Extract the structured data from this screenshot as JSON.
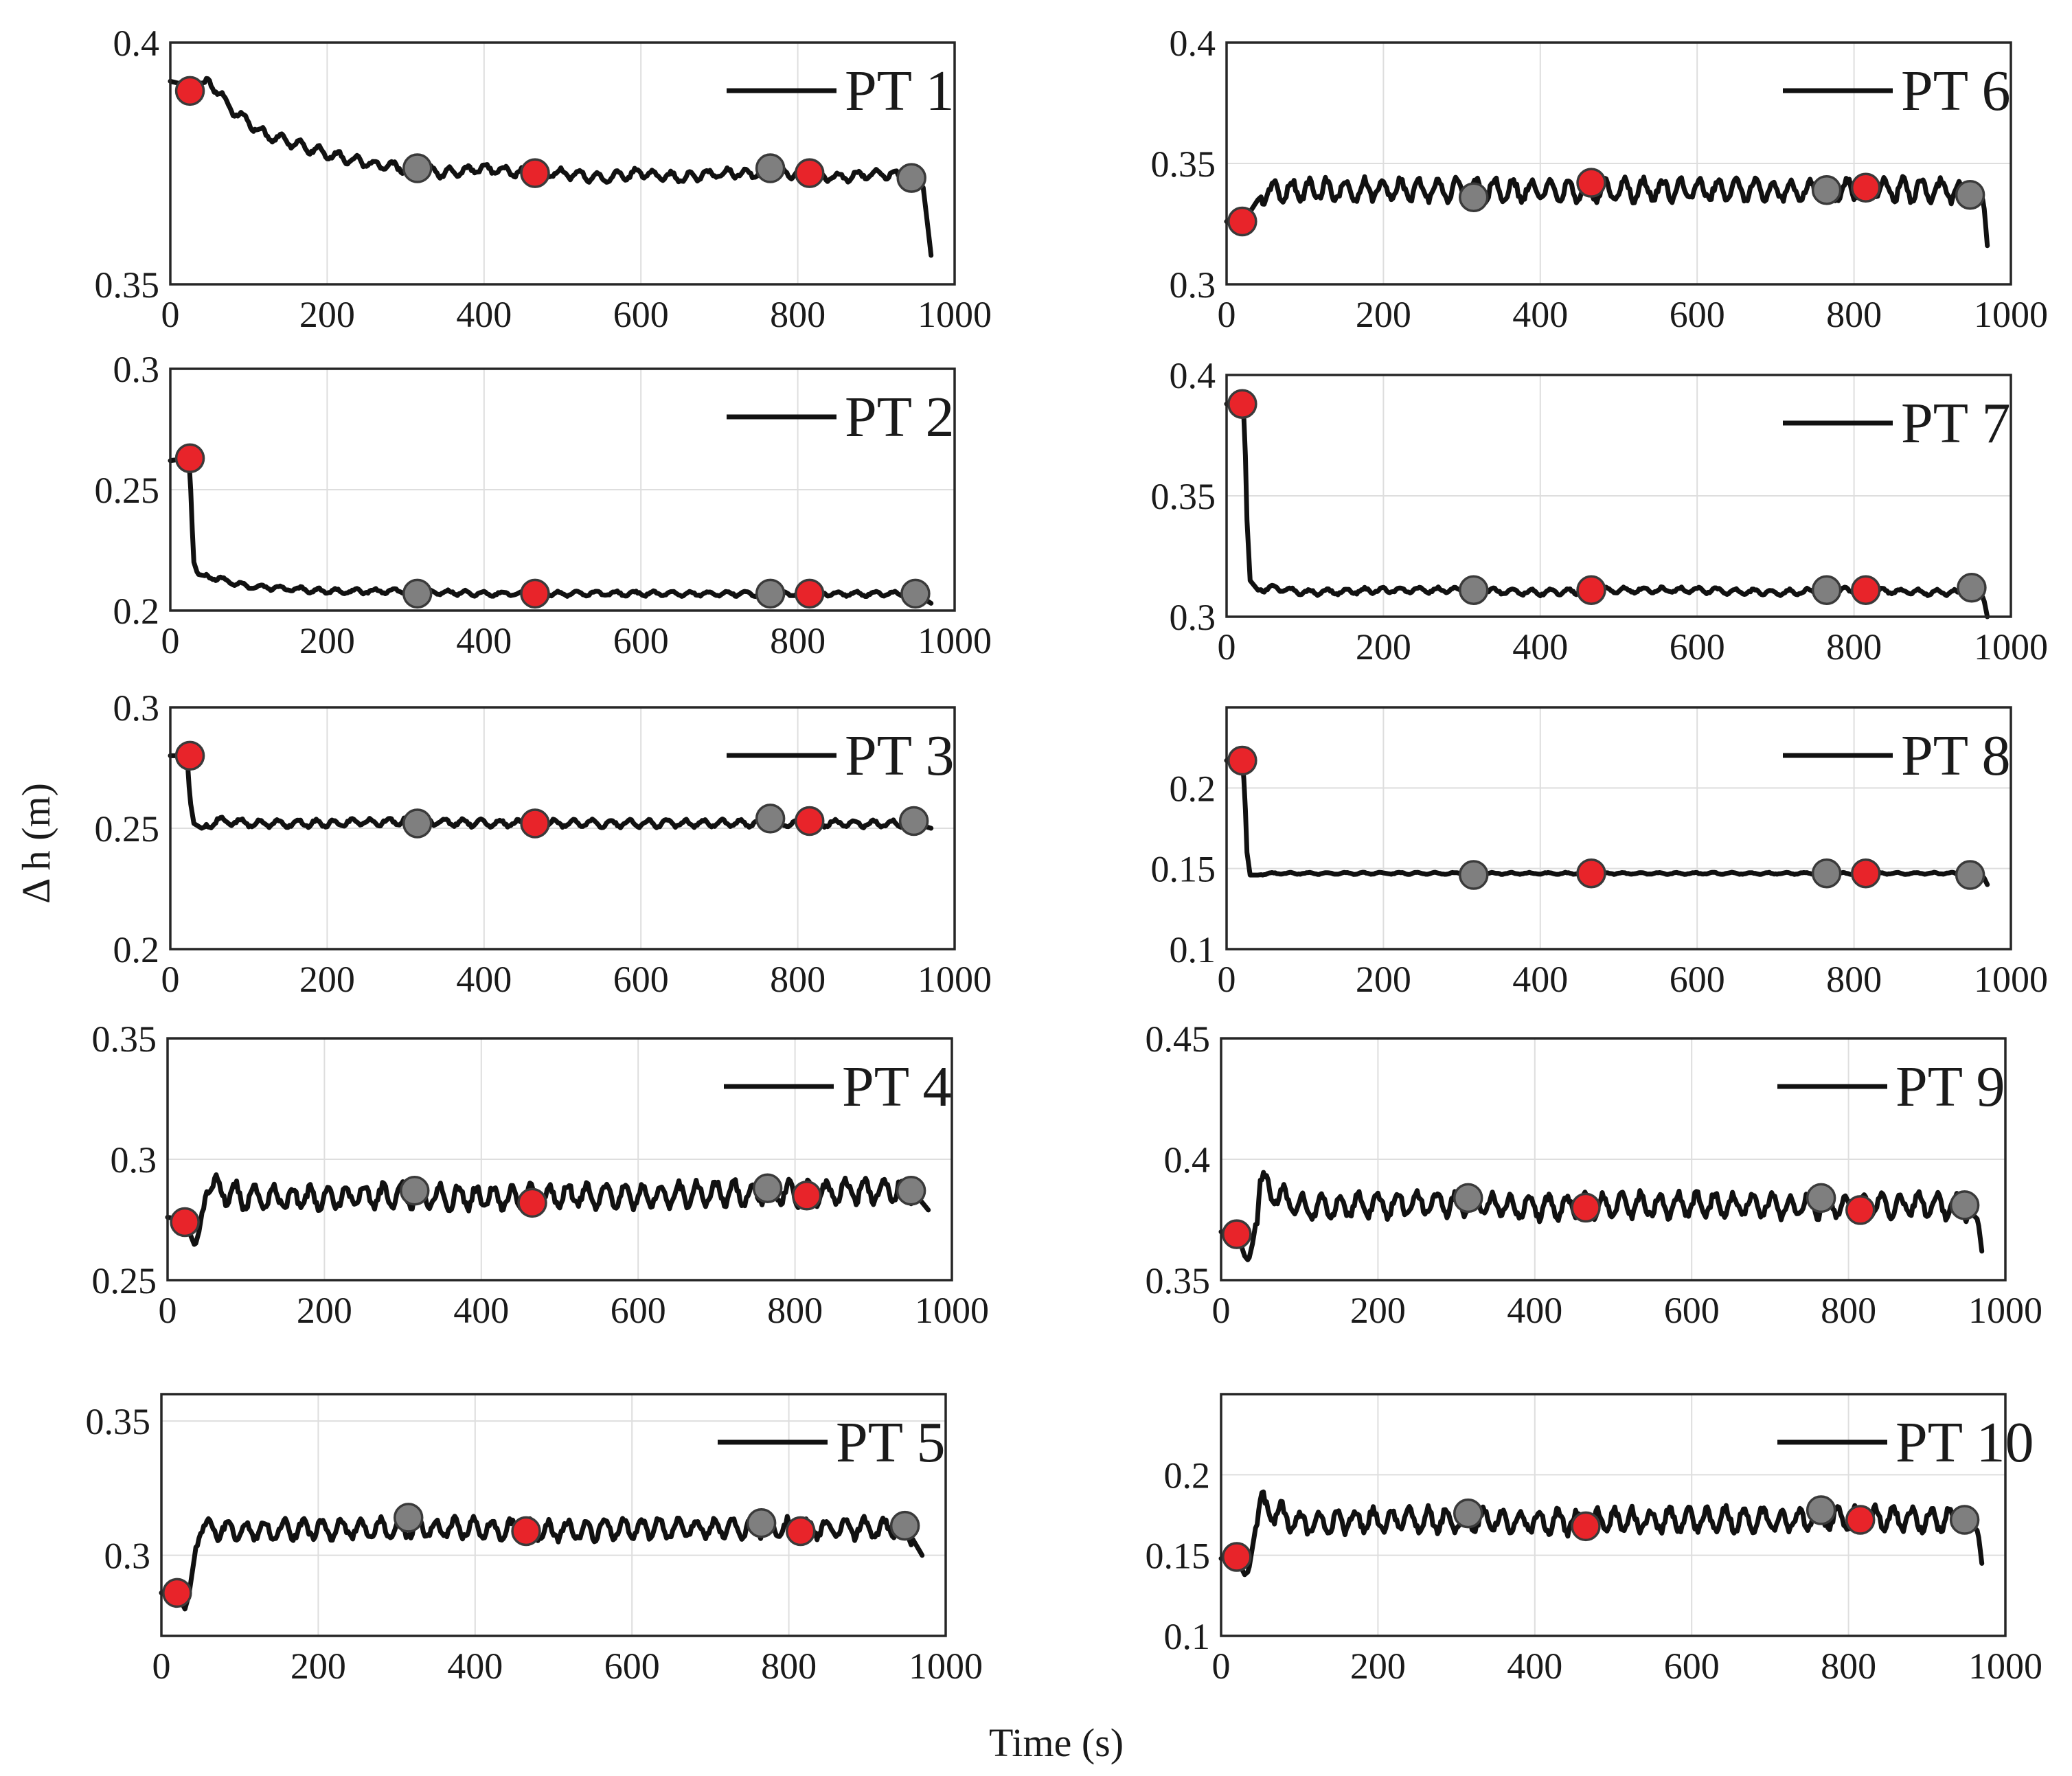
{
  "figure": {
    "ylabel": "Δ h (m)",
    "xlabel": "Time (s)"
  },
  "colors": {
    "line": "#111111",
    "marker_red": "#e8242a",
    "marker_gray": "#7f7f7f",
    "grid": "#dedede"
  },
  "chart_data": [
    {
      "type": "line",
      "panel": "PT 1",
      "legend": "PT 1",
      "legend_position": "top-right",
      "xlim": [
        0,
        1000
      ],
      "ylim": [
        0.35,
        0.4
      ],
      "xticks": [
        "0",
        "200",
        "400",
        "600",
        "800",
        "1000"
      ],
      "yticks": [
        "0.35",
        "0.4"
      ],
      "series": [
        {
          "name": "PT 1",
          "x": [
            0,
            25,
            50,
            80,
            120,
            160,
            200,
            250,
            300,
            350,
            400,
            450,
            500,
            550,
            600,
            650,
            700,
            750,
            800,
            850,
            900,
            950,
            960,
            970
          ],
          "y": [
            0.392,
            0.391,
            0.392,
            0.386,
            0.381,
            0.379,
            0.377,
            0.375,
            0.374,
            0.373,
            0.374,
            0.373,
            0.373,
            0.372,
            0.373,
            0.372,
            0.373,
            0.373,
            0.373,
            0.372,
            0.373,
            0.372,
            0.37,
            0.356
          ],
          "noise": 0.0012
        }
      ],
      "red_markers": [
        [
          25,
          0.39
        ],
        [
          465,
          0.373
        ],
        [
          815,
          0.373
        ]
      ],
      "gray_markers": [
        [
          315,
          0.374
        ],
        [
          765,
          0.374
        ],
        [
          945,
          0.372
        ]
      ]
    },
    {
      "type": "line",
      "panel": "PT 2",
      "legend": "PT 2",
      "legend_position": "top-right",
      "xlim": [
        0,
        1000
      ],
      "ylim": [
        0.2,
        0.3
      ],
      "xticks": [
        "0",
        "200",
        "400",
        "600",
        "800",
        "1000"
      ],
      "yticks": [
        "0.2",
        "0.25",
        "0.3"
      ],
      "series": [
        {
          "name": "PT 2",
          "x": [
            0,
            22,
            25,
            27,
            30,
            35,
            50,
            100,
            150,
            200,
            300,
            400,
            500,
            600,
            700,
            800,
            900,
            950,
            970
          ],
          "y": [
            0.262,
            0.263,
            0.26,
            0.24,
            0.22,
            0.215,
            0.214,
            0.21,
            0.209,
            0.208,
            0.208,
            0.207,
            0.207,
            0.207,
            0.207,
            0.207,
            0.207,
            0.207,
            0.203
          ],
          "noise": 0.0012
        }
      ],
      "red_markers": [
        [
          25,
          0.263
        ],
        [
          465,
          0.207
        ],
        [
          815,
          0.207
        ]
      ],
      "gray_markers": [
        [
          315,
          0.207
        ],
        [
          765,
          0.207
        ],
        [
          950,
          0.207
        ]
      ]
    },
    {
      "type": "line",
      "panel": "PT 3",
      "legend": "PT 3",
      "legend_position": "top-right",
      "xlim": [
        0,
        1000
      ],
      "ylim": [
        0.2,
        0.3
      ],
      "xticks": [
        "0",
        "200",
        "400",
        "600",
        "800",
        "1000"
      ],
      "yticks": [
        "0.2",
        "0.25",
        "0.3"
      ],
      "series": [
        {
          "name": "PT 3",
          "x": [
            0,
            20,
            22,
            25,
            30,
            40,
            60,
            100,
            200,
            300,
            400,
            500,
            600,
            700,
            800,
            900,
            950,
            970
          ],
          "y": [
            0.28,
            0.28,
            0.277,
            0.262,
            0.252,
            0.25,
            0.253,
            0.252,
            0.252,
            0.253,
            0.252,
            0.252,
            0.252,
            0.252,
            0.252,
            0.252,
            0.252,
            0.25
          ],
          "noise": 0.0018
        }
      ],
      "red_markers": [
        [
          25,
          0.28
        ],
        [
          465,
          0.252
        ],
        [
          815,
          0.253
        ]
      ],
      "gray_markers": [
        [
          315,
          0.252
        ],
        [
          765,
          0.254
        ],
        [
          948,
          0.253
        ]
      ]
    },
    {
      "type": "line",
      "panel": "PT 4",
      "legend": "PT 4",
      "legend_position": "top-right",
      "xlim": [
        0,
        1000
      ],
      "ylim": [
        0.25,
        0.35
      ],
      "xticks": [
        "0",
        "200",
        "400",
        "600",
        "800",
        "1000"
      ],
      "yticks": [
        "0.25",
        "0.3",
        "0.35"
      ],
      "series": [
        {
          "name": "PT 4",
          "x": [
            0,
            20,
            30,
            35,
            40,
            45,
            50,
            60,
            100,
            200,
            300,
            400,
            500,
            600,
            700,
            800,
            900,
            950,
            970
          ],
          "y": [
            0.276,
            0.275,
            0.268,
            0.264,
            0.27,
            0.28,
            0.29,
            0.288,
            0.284,
            0.284,
            0.285,
            0.284,
            0.285,
            0.285,
            0.286,
            0.286,
            0.287,
            0.287,
            0.279
          ],
          "noise": 0.006
        }
      ],
      "red_markers": [
        [
          22,
          0.274
        ],
        [
          465,
          0.282
        ],
        [
          815,
          0.285
        ]
      ],
      "gray_markers": [
        [
          315,
          0.287
        ],
        [
          765,
          0.288
        ],
        [
          948,
          0.287
        ]
      ]
    },
    {
      "type": "line",
      "panel": "PT 5",
      "legend": "PT 5",
      "legend_position": "top-right",
      "xlim": [
        0,
        1000
      ],
      "ylim": [
        0.27,
        0.36
      ],
      "xticks": [
        "0",
        "200",
        "400",
        "600",
        "800",
        "1000"
      ],
      "yticks": [
        "0.3",
        "0.35"
      ],
      "series": [
        {
          "name": "PT 5",
          "x": [
            0,
            20,
            30,
            35,
            40,
            45,
            50,
            60,
            100,
            200,
            300,
            400,
            500,
            600,
            700,
            800,
            900,
            950,
            970
          ],
          "y": [
            0.286,
            0.286,
            0.28,
            0.285,
            0.295,
            0.305,
            0.312,
            0.31,
            0.309,
            0.31,
            0.31,
            0.31,
            0.309,
            0.31,
            0.31,
            0.31,
            0.31,
            0.31,
            0.3
          ],
          "noise": 0.0045
        }
      ],
      "red_markers": [
        [
          20,
          0.286
        ],
        [
          465,
          0.309
        ],
        [
          815,
          0.309
        ]
      ],
      "gray_markers": [
        [
          315,
          0.314
        ],
        [
          765,
          0.312
        ],
        [
          948,
          0.311
        ]
      ]
    },
    {
      "type": "line",
      "panel": "PT 6",
      "legend": "PT 6",
      "legend_position": "top-right",
      "xlim": [
        0,
        1000
      ],
      "ylim": [
        0.3,
        0.4
      ],
      "xticks": [
        "0",
        "200",
        "400",
        "600",
        "800",
        "1000"
      ],
      "yticks": [
        "0.3",
        "0.35",
        "0.4"
      ],
      "series": [
        {
          "name": "PT 6",
          "x": [
            0,
            20,
            30,
            40,
            50,
            100,
            200,
            300,
            400,
            500,
            600,
            700,
            800,
            900,
            950,
            965,
            970
          ],
          "y": [
            0.326,
            0.327,
            0.33,
            0.335,
            0.338,
            0.339,
            0.339,
            0.339,
            0.339,
            0.339,
            0.339,
            0.339,
            0.339,
            0.339,
            0.338,
            0.335,
            0.316
          ],
          "noise": 0.0055
        }
      ],
      "red_markers": [
        [
          20,
          0.326
        ],
        [
          465,
          0.342
        ],
        [
          815,
          0.34
        ]
      ],
      "gray_markers": [
        [
          315,
          0.336
        ],
        [
          765,
          0.339
        ],
        [
          948,
          0.337
        ]
      ]
    },
    {
      "type": "line",
      "panel": "PT 7",
      "legend": "PT 7",
      "legend_position": "top-right",
      "xlim": [
        0,
        1000
      ],
      "ylim": [
        0.3,
        0.4
      ],
      "xticks": [
        "0",
        "200",
        "400",
        "600",
        "800",
        "1000"
      ],
      "yticks": [
        "0.3",
        "0.35",
        "0.4"
      ],
      "series": [
        {
          "name": "PT 7",
          "x": [
            0,
            20,
            23,
            26,
            30,
            40,
            60,
            100,
            200,
            300,
            400,
            500,
            600,
            700,
            800,
            900,
            950,
            965,
            970
          ],
          "y": [
            0.388,
            0.388,
            0.38,
            0.34,
            0.315,
            0.311,
            0.312,
            0.31,
            0.311,
            0.311,
            0.31,
            0.311,
            0.311,
            0.31,
            0.311,
            0.31,
            0.31,
            0.308,
            0.3
          ],
          "noise": 0.0014
        }
      ],
      "red_markers": [
        [
          20,
          0.388
        ],
        [
          465,
          0.311
        ],
        [
          815,
          0.311
        ]
      ],
      "gray_markers": [
        [
          315,
          0.311
        ],
        [
          765,
          0.311
        ],
        [
          950,
          0.312
        ]
      ]
    },
    {
      "type": "line",
      "panel": "PT 8",
      "legend": "PT 8",
      "legend_position": "top-right",
      "xlim": [
        0,
        1000
      ],
      "ylim": [
        0.1,
        0.25
      ],
      "xticks": [
        "0",
        "200",
        "400",
        "600",
        "800",
        "1000"
      ],
      "yticks": [
        "0.1",
        "0.15",
        "0.2"
      ],
      "series": [
        {
          "name": "PT 8",
          "x": [
            0,
            20,
            23,
            26,
            30,
            40,
            60,
            100,
            200,
            300,
            400,
            500,
            600,
            700,
            800,
            900,
            950,
            965,
            970
          ],
          "y": [
            0.217,
            0.217,
            0.2,
            0.16,
            0.146,
            0.146,
            0.147,
            0.147,
            0.147,
            0.147,
            0.147,
            0.147,
            0.147,
            0.147,
            0.147,
            0.147,
            0.147,
            0.145,
            0.14
          ],
          "noise": 0.0007
        }
      ],
      "red_markers": [
        [
          20,
          0.217
        ],
        [
          465,
          0.147
        ],
        [
          815,
          0.147
        ]
      ],
      "gray_markers": [
        [
          315,
          0.146
        ],
        [
          765,
          0.147
        ],
        [
          948,
          0.146
        ]
      ]
    },
    {
      "type": "line",
      "panel": "PT 9",
      "legend": "PT 9",
      "legend_position": "top-right",
      "xlim": [
        0,
        1000
      ],
      "ylim": [
        0.35,
        0.45
      ],
      "xticks": [
        "0",
        "200",
        "400",
        "600",
        "800",
        "1000"
      ],
      "yticks": [
        "0.35",
        "0.4",
        "0.45"
      ],
      "series": [
        {
          "name": "PT 9",
          "x": [
            0,
            20,
            30,
            35,
            40,
            45,
            50,
            60,
            100,
            200,
            300,
            400,
            500,
            600,
            700,
            800,
            900,
            950,
            965,
            970
          ],
          "y": [
            0.37,
            0.37,
            0.36,
            0.358,
            0.365,
            0.375,
            0.39,
            0.388,
            0.38,
            0.381,
            0.382,
            0.38,
            0.381,
            0.381,
            0.381,
            0.381,
            0.381,
            0.38,
            0.375,
            0.362
          ],
          "noise": 0.006
        }
      ],
      "red_markers": [
        [
          20,
          0.369
        ],
        [
          465,
          0.38
        ],
        [
          815,
          0.379
        ]
      ],
      "gray_markers": [
        [
          315,
          0.384
        ],
        [
          765,
          0.384
        ],
        [
          948,
          0.381
        ]
      ]
    },
    {
      "type": "line",
      "panel": "PT 10",
      "legend": "PT 10",
      "legend_position": "top-right",
      "xlim": [
        0,
        1000
      ],
      "ylim": [
        0.1,
        0.25
      ],
      "xticks": [
        "0",
        "200",
        "400",
        "600",
        "800",
        "1000"
      ],
      "yticks": [
        "0.1",
        "0.15",
        "0.2"
      ],
      "series": [
        {
          "name": "PT 10",
          "x": [
            0,
            20,
            30,
            35,
            40,
            45,
            50,
            60,
            100,
            200,
            300,
            400,
            500,
            600,
            700,
            800,
            900,
            950,
            965,
            970
          ],
          "y": [
            0.148,
            0.148,
            0.138,
            0.14,
            0.155,
            0.17,
            0.182,
            0.178,
            0.17,
            0.172,
            0.172,
            0.171,
            0.171,
            0.172,
            0.172,
            0.173,
            0.172,
            0.172,
            0.165,
            0.145
          ],
          "noise": 0.009
        }
      ],
      "red_markers": [
        [
          20,
          0.149
        ],
        [
          465,
          0.168
        ],
        [
          815,
          0.172
        ]
      ],
      "gray_markers": [
        [
          315,
          0.176
        ],
        [
          765,
          0.178
        ],
        [
          948,
          0.172
        ]
      ]
    }
  ]
}
